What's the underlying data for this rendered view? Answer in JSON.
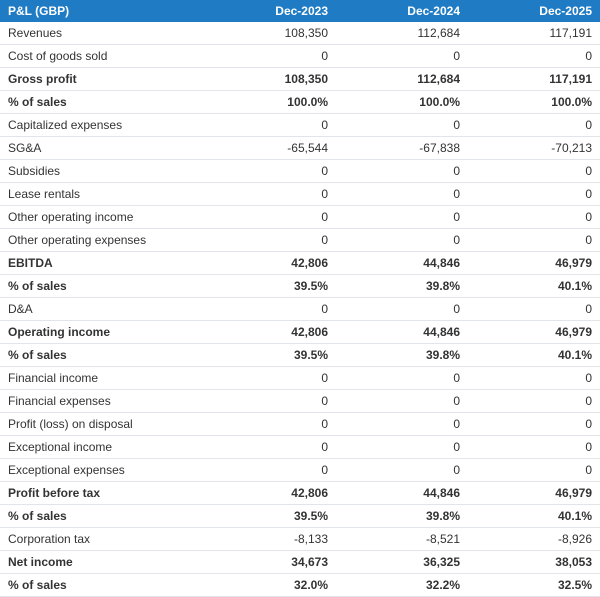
{
  "header": {
    "title": "P&L (GBP)",
    "periods": [
      "Dec-2023",
      "Dec-2024",
      "Dec-2025"
    ]
  },
  "styling": {
    "header_bg": "#1e7bc4",
    "header_fg": "#ffffff",
    "row_border": "#e1e4e8",
    "font_size": 12,
    "bold_weight": "bold",
    "col_widths": {
      "label": 204,
      "value": 132
    }
  },
  "rows": [
    {
      "label": "Revenues",
      "vals": [
        "108,350",
        "112,684",
        "117,191"
      ],
      "bold": false
    },
    {
      "label": "Cost of goods sold",
      "vals": [
        "0",
        "0",
        "0"
      ],
      "bold": false
    },
    {
      "label": "Gross profit",
      "vals": [
        "108,350",
        "112,684",
        "117,191"
      ],
      "bold": true
    },
    {
      "label": "% of sales",
      "vals": [
        "100.0%",
        "100.0%",
        "100.0%"
      ],
      "bold": true
    },
    {
      "label": "Capitalized expenses",
      "vals": [
        "0",
        "0",
        "0"
      ],
      "bold": false
    },
    {
      "label": "SG&A",
      "vals": [
        "-65,544",
        "-67,838",
        "-70,213"
      ],
      "bold": false
    },
    {
      "label": "Subsidies",
      "vals": [
        "0",
        "0",
        "0"
      ],
      "bold": false
    },
    {
      "label": "Lease rentals",
      "vals": [
        "0",
        "0",
        "0"
      ],
      "bold": false
    },
    {
      "label": "Other operating income",
      "vals": [
        "0",
        "0",
        "0"
      ],
      "bold": false
    },
    {
      "label": "Other operating expenses",
      "vals": [
        "0",
        "0",
        "0"
      ],
      "bold": false
    },
    {
      "label": "EBITDA",
      "vals": [
        "42,806",
        "44,846",
        "46,979"
      ],
      "bold": true
    },
    {
      "label": "% of sales",
      "vals": [
        "39.5%",
        "39.8%",
        "40.1%"
      ],
      "bold": true
    },
    {
      "label": "D&A",
      "vals": [
        "0",
        "0",
        "0"
      ],
      "bold": false
    },
    {
      "label": "Operating income",
      "vals": [
        "42,806",
        "44,846",
        "46,979"
      ],
      "bold": true
    },
    {
      "label": "% of sales",
      "vals": [
        "39.5%",
        "39.8%",
        "40.1%"
      ],
      "bold": true
    },
    {
      "label": "Financial income",
      "vals": [
        "0",
        "0",
        "0"
      ],
      "bold": false
    },
    {
      "label": "Financial expenses",
      "vals": [
        "0",
        "0",
        "0"
      ],
      "bold": false
    },
    {
      "label": "Profit (loss) on disposal",
      "vals": [
        "0",
        "0",
        "0"
      ],
      "bold": false
    },
    {
      "label": "Exceptional income",
      "vals": [
        "0",
        "0",
        "0"
      ],
      "bold": false
    },
    {
      "label": "Exceptional expenses",
      "vals": [
        "0",
        "0",
        "0"
      ],
      "bold": false
    },
    {
      "label": "Profit before tax",
      "vals": [
        "42,806",
        "44,846",
        "46,979"
      ],
      "bold": true
    },
    {
      "label": "% of sales",
      "vals": [
        "39.5%",
        "39.8%",
        "40.1%"
      ],
      "bold": true
    },
    {
      "label": "Corporation tax",
      "vals": [
        "-8,133",
        "-8,521",
        "-8,926"
      ],
      "bold": false
    },
    {
      "label": "Net income",
      "vals": [
        "34,673",
        "36,325",
        "38,053"
      ],
      "bold": true
    },
    {
      "label": "% of sales",
      "vals": [
        "32.0%",
        "32.2%",
        "32.5%"
      ],
      "bold": true
    }
  ]
}
